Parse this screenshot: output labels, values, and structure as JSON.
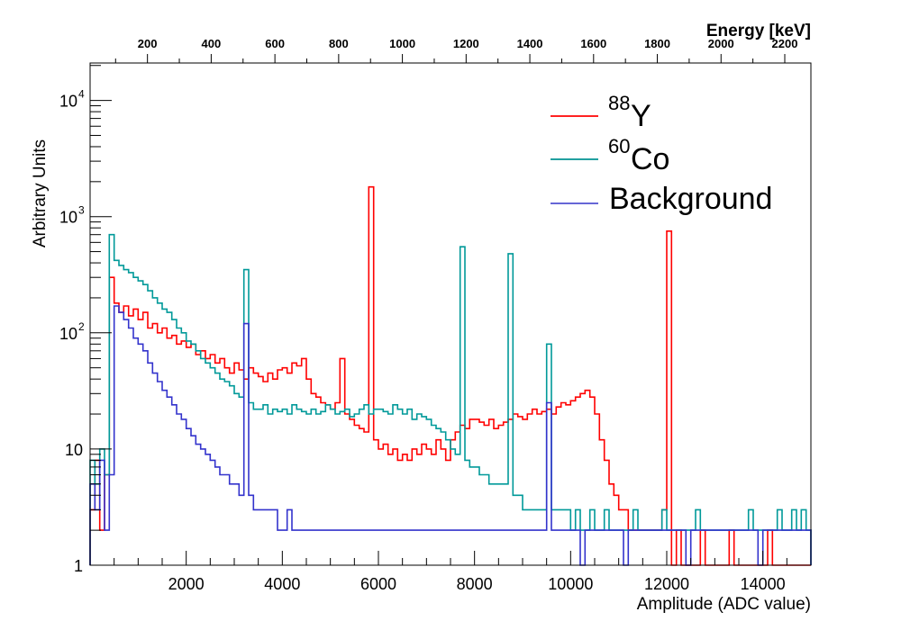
{
  "chart_data": {
    "type": "histogram",
    "title": "",
    "xlabel": "Amplitude (ADC value)",
    "ylabel": "Arbitrary Units",
    "x2label": "Energy [keV]",
    "xlim": [
      0,
      15000
    ],
    "ylim": [
      1,
      21000
    ],
    "yscale": "log",
    "x2lim": [
      20,
      2282
    ],
    "bin_width": 100,
    "x_ticks": [
      2000,
      4000,
      6000,
      8000,
      10000,
      12000,
      14000
    ],
    "x_tick_labels": [
      "2000",
      "4000",
      "6000",
      "8000",
      "10000",
      "12000",
      "14000"
    ],
    "x2_ticks": [
      200,
      400,
      600,
      800,
      1000,
      1200,
      1400,
      1600,
      1800,
      2000,
      2200
    ],
    "x2_tick_labels": [
      "200",
      "400",
      "600",
      "800",
      "1000",
      "1200",
      "1400",
      "1600",
      "1800",
      "2000",
      "2200"
    ],
    "y_ticks": [
      1,
      10,
      100,
      1000,
      10000
    ],
    "y_tick_labels": [
      {
        "base": "1",
        "exp": ""
      },
      {
        "base": "10",
        "exp": ""
      },
      {
        "base": "10",
        "exp": "2"
      },
      {
        "base": "10",
        "exp": "3"
      },
      {
        "base": "10",
        "exp": "4"
      }
    ],
    "legend_position": "top-right",
    "series": [
      {
        "name": "Y",
        "name_sup": "88",
        "color": "#ff0000",
        "legend_color": "#ff2222",
        "values": [
          3,
          8,
          2,
          6,
          300,
          180,
          150,
          170,
          140,
          160,
          130,
          150,
          110,
          120,
          100,
          110,
          90,
          95,
          80,
          85,
          75,
          80,
          65,
          70,
          60,
          65,
          55,
          60,
          50,
          45,
          55,
          48,
          40,
          50,
          45,
          42,
          38,
          45,
          40,
          48,
          50,
          45,
          55,
          52,
          60,
          40,
          30,
          28,
          25,
          24,
          22,
          25,
          60,
          20,
          18,
          16,
          15,
          14,
          1800,
          12,
          10,
          11,
          9,
          10,
          8,
          9,
          8,
          10,
          9,
          11,
          10,
          9,
          12,
          10,
          8,
          12,
          14,
          16,
          15,
          18,
          18,
          17,
          16,
          18,
          15,
          16,
          17,
          18,
          20,
          19,
          18,
          20,
          22,
          20,
          21,
          22,
          20,
          23,
          25,
          24,
          26,
          28,
          30,
          32,
          28,
          20,
          12,
          8,
          5,
          4,
          3,
          3,
          2,
          2,
          2,
          2,
          2,
          2,
          2,
          3,
          750,
          1,
          2,
          1,
          1,
          1,
          1,
          2,
          1,
          1,
          1,
          1,
          1,
          2,
          1,
          1,
          1,
          1,
          1,
          1,
          1,
          2,
          1,
          1,
          1,
          1,
          1,
          1,
          1,
          1
        ]
      },
      {
        "name": "Co",
        "name_sup": "60",
        "color": "#009999",
        "legend_color": "#22a0a0",
        "values": [
          8,
          5,
          10,
          6,
          700,
          420,
          380,
          350,
          330,
          300,
          280,
          260,
          230,
          200,
          180,
          160,
          150,
          130,
          110,
          100,
          85,
          80,
          70,
          60,
          55,
          50,
          45,
          40,
          38,
          35,
          30,
          28,
          350,
          25,
          22,
          22,
          24,
          20,
          22,
          21,
          22,
          20,
          24,
          22,
          21,
          20,
          22,
          20,
          21,
          24,
          22,
          20,
          21,
          22,
          19,
          20,
          22,
          24,
          20,
          22,
          22,
          21,
          20,
          24,
          22,
          20,
          22,
          18,
          20,
          19,
          18,
          16,
          15,
          14,
          12,
          10,
          9,
          550,
          8,
          7,
          7,
          6,
          6,
          5,
          5,
          5,
          5,
          480,
          4,
          4,
          3,
          3,
          3,
          3,
          3,
          80,
          3,
          3,
          3,
          3,
          2,
          3,
          2,
          2,
          3,
          2,
          2,
          3,
          2,
          2,
          2,
          2,
          2,
          3,
          2,
          2,
          2,
          2,
          2,
          3,
          2,
          2,
          2,
          2,
          2,
          2,
          3,
          2,
          2,
          2,
          2,
          2,
          2,
          2,
          2,
          2,
          2,
          3,
          2,
          2,
          2,
          2,
          2,
          3,
          2,
          2,
          3,
          2,
          3,
          2
        ]
      },
      {
        "name": "Background",
        "name_sup": "",
        "color": "#3333cc",
        "legend_color": "#6666d6",
        "values": [
          5,
          3,
          8,
          2,
          6,
          170,
          150,
          130,
          110,
          90,
          80,
          70,
          55,
          45,
          38,
          32,
          28,
          24,
          20,
          18,
          15,
          13,
          11,
          10,
          9,
          8,
          7,
          6,
          6,
          5,
          5,
          4,
          120,
          4,
          3,
          3,
          3,
          3,
          3,
          2,
          2,
          3,
          2,
          2,
          2,
          2,
          2,
          2,
          2,
          2,
          2,
          2,
          2,
          2,
          2,
          2,
          2,
          2,
          2,
          2,
          2,
          2,
          2,
          2,
          2,
          2,
          2,
          2,
          2,
          2,
          2,
          2,
          2,
          2,
          2,
          2,
          2,
          2,
          2,
          2,
          2,
          2,
          2,
          2,
          2,
          2,
          2,
          2,
          2,
          2,
          2,
          2,
          2,
          2,
          2,
          25,
          2,
          2,
          2,
          2,
          2,
          2,
          1,
          2,
          2,
          2,
          2,
          2,
          2,
          2,
          2,
          1,
          2,
          2,
          2,
          2,
          2,
          2,
          2,
          2,
          2,
          2,
          2,
          2,
          1,
          2,
          2,
          2,
          2,
          2,
          2,
          2,
          2,
          2,
          2,
          2,
          2,
          2,
          2,
          1,
          2,
          2,
          2,
          2,
          2,
          2,
          2,
          2,
          2,
          2
        ]
      }
    ]
  }
}
